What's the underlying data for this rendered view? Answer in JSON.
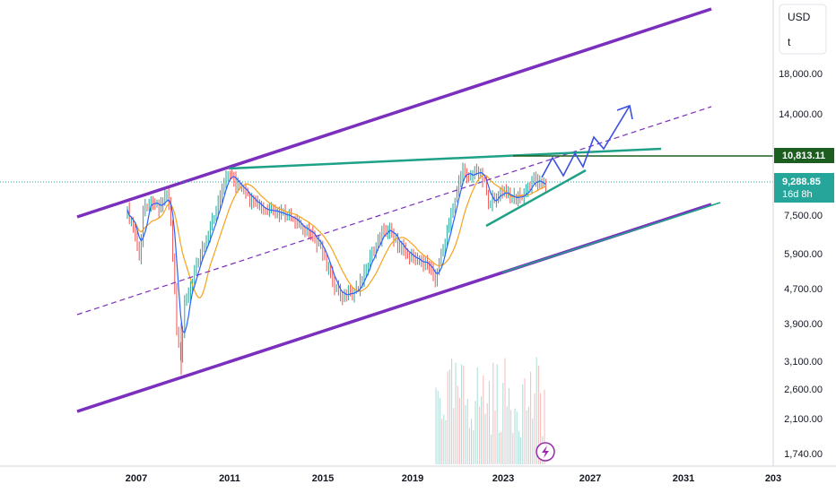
{
  "chart_data": {
    "type": "candlestick",
    "x_axis": {
      "ticks": [
        "2007",
        "2011",
        "2015",
        "2019",
        "2023",
        "2027",
        "2031",
        "203"
      ]
    },
    "y_axis": {
      "scale": "log",
      "currency": "USD",
      "unit_label": "t",
      "ticks": [
        "18,000.00",
        "14,000.00",
        "7,500.00",
        "5,900.00",
        "4,700.00",
        "3,900.00",
        "3,100.00",
        "2,600.00",
        "2,100.00",
        "1,740.00"
      ]
    },
    "price_labels": {
      "resistance": {
        "text": "10,813.11",
        "color": "#1b5e20"
      },
      "last_price": {
        "text": "9,288.85",
        "countdown": "16d 8h",
        "color": "#26a69a"
      }
    },
    "colors": {
      "up": "#26a69a",
      "down": "#ef5350",
      "channel": "#7b2fbe",
      "trendline": "#1fa187",
      "projection": "#3b4fe0",
      "ma_fast": "#2962ff",
      "ma_slow": "#f7a21b"
    },
    "drawings": [
      "ascending-channel",
      "channel-midline",
      "resistance-line",
      "triangle-support",
      "projected-path"
    ],
    "icons": {
      "indicator": "lightning-icon"
    }
  }
}
